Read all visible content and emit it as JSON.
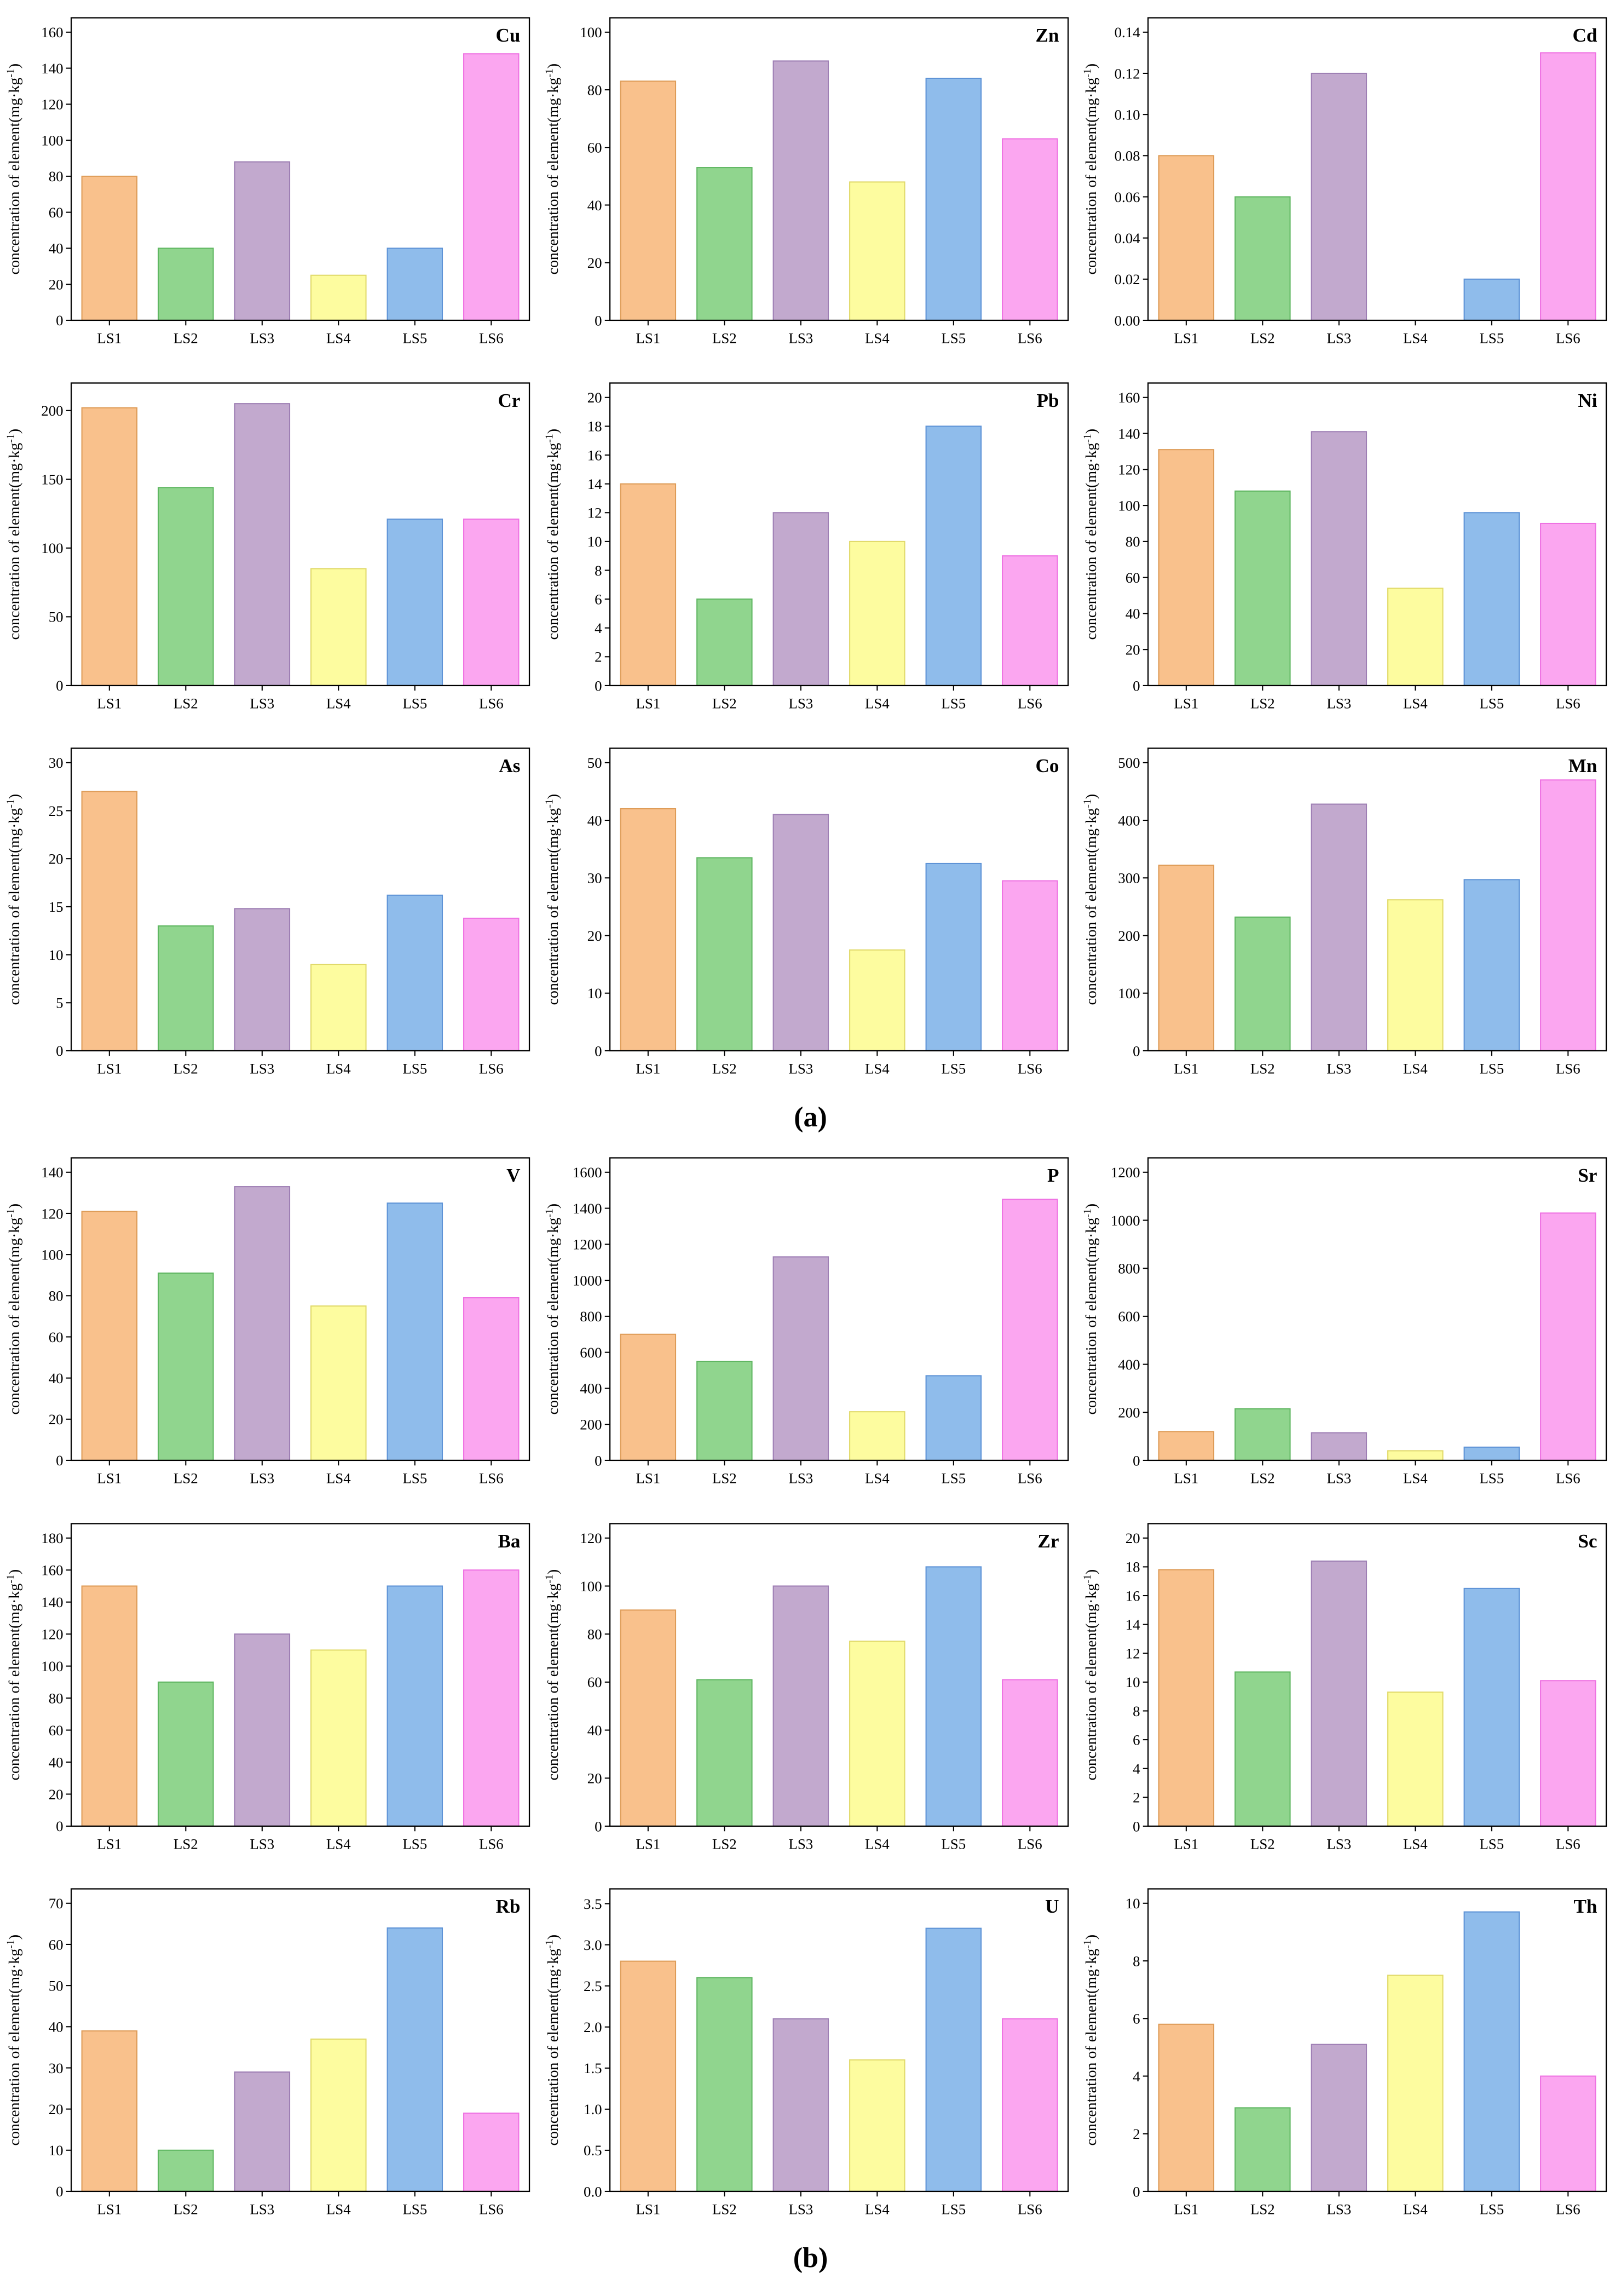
{
  "labels": {
    "panel_a": "(a)",
    "panel_b": "(b)"
  },
  "categories": [
    "LS1",
    "LS2",
    "LS3",
    "LS4",
    "LS5",
    "LS6"
  ],
  "ylabel": {
    "pre": "concentration of element(mg·kg",
    "sup": "-1",
    "post": ")"
  },
  "bar_colors": [
    "#F9C18C",
    "#90D58E",
    "#C2A9CE",
    "#FDFC9F",
    "#8FBCEB",
    "#FBA6F0"
  ],
  "bar_edge_colors": [
    "#DE9C58",
    "#5FB661",
    "#9E7FB4",
    "#E0D96A",
    "#5E93D6",
    "#EE72E2"
  ],
  "chart_data": [
    {
      "type": "bar",
      "element": "Cu",
      "panel": "a",
      "ymax": 168,
      "ytick_step": 20,
      "tick_decimals": 0,
      "values": [
        80,
        40,
        88,
        25,
        40,
        148
      ]
    },
    {
      "type": "bar",
      "element": "Zn",
      "panel": "a",
      "ymax": 105,
      "ytick_step": 20,
      "tick_decimals": 0,
      "values": [
        83,
        53,
        90,
        48,
        84,
        63
      ]
    },
    {
      "type": "bar",
      "element": "Cd",
      "panel": "a",
      "ymax": 0.147,
      "ytick_step": 0.02,
      "tick_decimals": 2,
      "values": [
        0.08,
        0.06,
        0.12,
        0,
        0.02,
        0.13
      ]
    },
    {
      "type": "bar",
      "element": "Cr",
      "panel": "a",
      "ymax": 220,
      "ytick_step": 50,
      "tick_decimals": 0,
      "values": [
        202,
        144,
        205,
        85,
        121,
        121
      ]
    },
    {
      "type": "bar",
      "element": "Pb",
      "panel": "a",
      "ymax": 21,
      "ytick_step": 2,
      "tick_decimals": 0,
      "values": [
        14,
        6,
        12,
        10,
        18,
        9
      ]
    },
    {
      "type": "bar",
      "element": "Ni",
      "panel": "a",
      "ymax": 168,
      "ytick_step": 20,
      "tick_decimals": 0,
      "values": [
        131,
        108,
        141,
        54,
        96,
        90
      ]
    },
    {
      "type": "bar",
      "element": "As",
      "panel": "a",
      "ymax": 31.5,
      "ytick_step": 5,
      "tick_decimals": 0,
      "values": [
        27,
        13,
        14.8,
        9,
        16.2,
        13.8
      ]
    },
    {
      "type": "bar",
      "element": "Co",
      "panel": "a",
      "ymax": 52.5,
      "ytick_step": 10,
      "tick_decimals": 0,
      "values": [
        42,
        33.5,
        41,
        17.5,
        32.5,
        29.5
      ]
    },
    {
      "type": "bar",
      "element": "Mn",
      "panel": "a",
      "ymax": 525,
      "ytick_step": 100,
      "tick_decimals": 0,
      "values": [
        322,
        232,
        428,
        262,
        297,
        470
      ]
    },
    {
      "type": "bar",
      "element": "V",
      "panel": "b",
      "ymax": 147,
      "ytick_step": 20,
      "tick_decimals": 0,
      "values": [
        121,
        91,
        133,
        75,
        125,
        79
      ]
    },
    {
      "type": "bar",
      "element": "P",
      "panel": "b",
      "ymax": 1680,
      "ytick_step": 200,
      "tick_decimals": 0,
      "values": [
        700,
        550,
        1130,
        270,
        470,
        1450
      ]
    },
    {
      "type": "bar",
      "element": "Sr",
      "panel": "b",
      "ymax": 1260,
      "ytick_step": 200,
      "tick_decimals": 0,
      "values": [
        120,
        215,
        115,
        40,
        55,
        1030
      ]
    },
    {
      "type": "bar",
      "element": "Ba",
      "panel": "b",
      "ymax": 189,
      "ytick_step": 20,
      "tick_decimals": 0,
      "values": [
        150,
        90,
        120,
        110,
        150,
        160
      ]
    },
    {
      "type": "bar",
      "element": "Zr",
      "panel": "b",
      "ymax": 126,
      "ytick_step": 20,
      "tick_decimals": 0,
      "values": [
        90,
        61,
        100,
        77,
        108,
        61
      ]
    },
    {
      "type": "bar",
      "element": "Sc",
      "panel": "b",
      "ymax": 21,
      "ytick_step": 2,
      "tick_decimals": 0,
      "values": [
        17.8,
        10.7,
        18.4,
        9.3,
        16.5,
        10.1
      ]
    },
    {
      "type": "bar",
      "element": "Rb",
      "panel": "b",
      "ymax": 73.5,
      "ytick_step": 10,
      "tick_decimals": 0,
      "values": [
        39,
        10,
        29,
        37,
        64,
        19
      ]
    },
    {
      "type": "bar",
      "element": "U",
      "panel": "b",
      "ymax": 3.68,
      "ytick_step": 0.5,
      "tick_decimals": 1,
      "values": [
        2.8,
        2.6,
        2.1,
        1.6,
        3.2,
        2.1
      ]
    },
    {
      "type": "bar",
      "element": "Th",
      "panel": "b",
      "ymax": 10.5,
      "ytick_step": 2,
      "tick_decimals": 0,
      "values": [
        5.8,
        2.9,
        5.1,
        7.5,
        9.7,
        4.0
      ]
    }
  ]
}
